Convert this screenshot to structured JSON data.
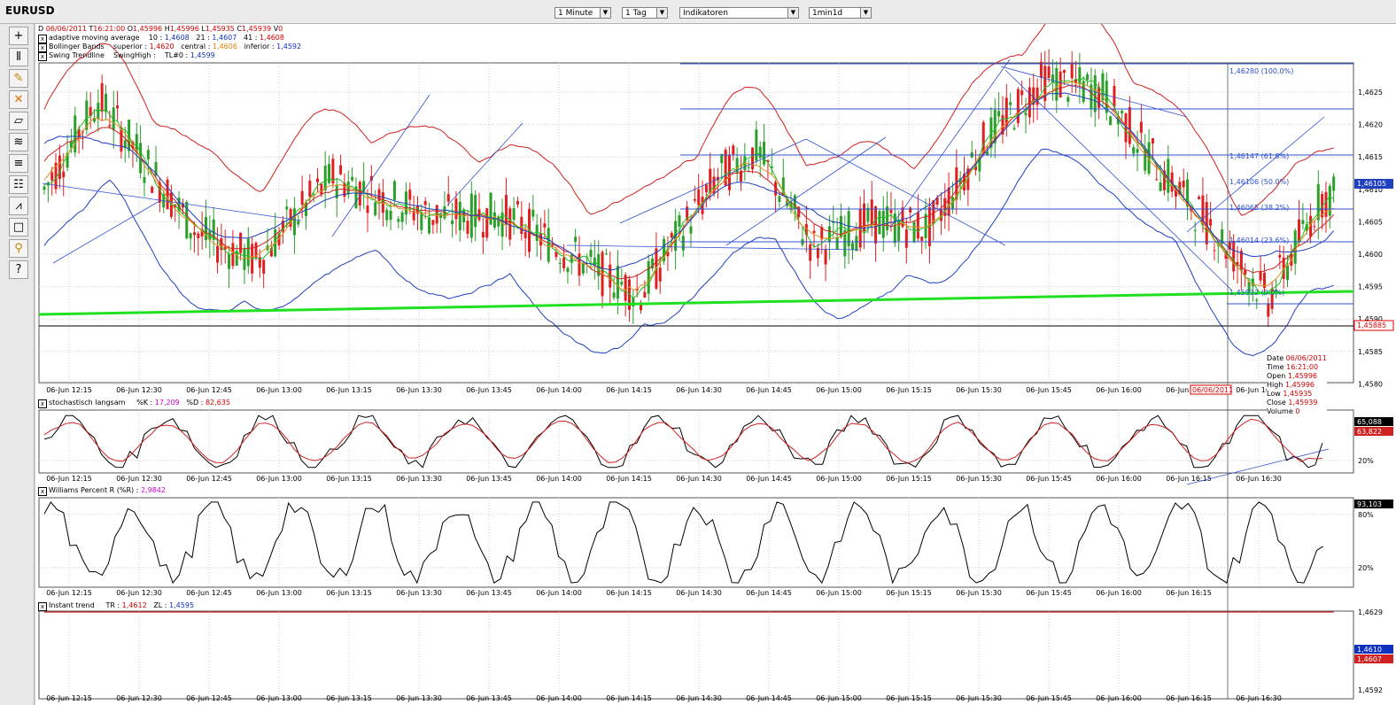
{
  "window": {
    "title": "EURUSD"
  },
  "controls": {
    "interval": "1 Minute",
    "period": "1 Tag",
    "indicators": "Indikatoren",
    "template": "1min1d"
  },
  "toolbar": {
    "icons": [
      "crosshair-icon",
      "bars-icon",
      "pencil-icon",
      "delete-icon",
      "eraser-icon",
      "chart-type-icon",
      "lines-icon",
      "grid-icon",
      "indicator-icon",
      "square-icon",
      "magnet-icon",
      "help-icon"
    ]
  },
  "header": {
    "date_label": "D",
    "date": "06/06/2011",
    "time_label": "T",
    "time": "16:21:00",
    "open_label": "O",
    "open": "1,45996",
    "high_label": "H",
    "high": "1,45996",
    "low_label": "L",
    "low": "1,45935",
    "close_label": "C",
    "close": "1,45939",
    "vol_label": "V",
    "vol": "0"
  },
  "legend_price": [
    {
      "name": "adaptive moving average",
      "p1": "10 :",
      "v1": "1,4608",
      "p2": "21 :",
      "v2": "1,4607",
      "p3": "41 :",
      "v3": "1,4608"
    },
    {
      "name": "Bollinger Bands",
      "p1": "superior :",
      "v1": "1,4620",
      "p2": "central :",
      "v2": "1,4606",
      "p3": "inferior :",
      "v3": "1,4592"
    },
    {
      "name": "Swing Trendline",
      "p1": "SwingHigh :",
      "v1": "",
      "p2": "TL#0 :",
      "v2": "1,4599",
      "p3": "",
      "v3": ""
    }
  ],
  "price_axis": [
    "1,4625",
    "1,4620",
    "1,4615",
    "1,4610",
    "1,4605",
    "1,4600",
    "1,4595",
    "1,4590",
    "1,4585",
    "1,4580"
  ],
  "price_current": "1,46105",
  "price_cross": "1,45885",
  "fib": [
    "1,46280 (100.0%)",
    "1,46147 (61.8%)",
    "1,46106 (50.0%)",
    "1,46065 (38.2%)",
    "1,46014 (23.6%)",
    "1,45932 (0.0%)"
  ],
  "x_labels": [
    "06-Jun 12:15",
    "06-Jun 12:30",
    "06-Jun 12:45",
    "06-Jun 13:00",
    "06-Jun 13:15",
    "06-Jun 13:30",
    "06-Jun 13:45",
    "06-Jun 14:00",
    "06-Jun 14:15",
    "06-Jun 14:30",
    "06-Jun 14:45",
    "06-Jun 15:00",
    "06-Jun 15:15",
    "06-Jun 15:30",
    "06-Jun 15:45",
    "06-Jun 16:00",
    "06-Jun 16:15",
    "06-Jun 16:30"
  ],
  "crosshair_date": "06/06/2011",
  "tooltip": {
    "date_label": "Date",
    "date": "06/06/2011",
    "time_label": "Time",
    "time": "16:21:00",
    "open_label": "Open",
    "open": "1,45996",
    "high_label": "High",
    "high": "1,45996",
    "low_label": "Low",
    "low": "1,45935",
    "close_label": "Close",
    "close": "1,45939",
    "volume_label": "Volume",
    "volume": "0"
  },
  "stoch": {
    "name": "stochastisch langsam",
    "k_label": "%K :",
    "k": "17,209",
    "d_label": "%D :",
    "d": "82,635",
    "axis": [
      "20%"
    ],
    "badge1": "65,088",
    "badge2": "63,822"
  },
  "williams": {
    "name": "Williams Percent R (%R)",
    "value": "2,9842",
    "axis": [
      "80%",
      "20%"
    ],
    "badge": "93,103"
  },
  "instant": {
    "name": "Instant trend",
    "tr_label": "TR :",
    "tr": "1,4612",
    "zl_label": "ZL :",
    "zl": "1,4595",
    "axis": [
      "1,4629",
      "1,4592"
    ],
    "badge1": "1,4610",
    "badge2": "1,4607"
  },
  "colors": {
    "up": "#2aa02a",
    "down": "#e02020",
    "boll": "#d02020",
    "ama_blue": "#2040c0",
    "fast": "#20c020",
    "slow": "#e09020",
    "support": "#20e020",
    "trend": "#3050d0"
  }
}
